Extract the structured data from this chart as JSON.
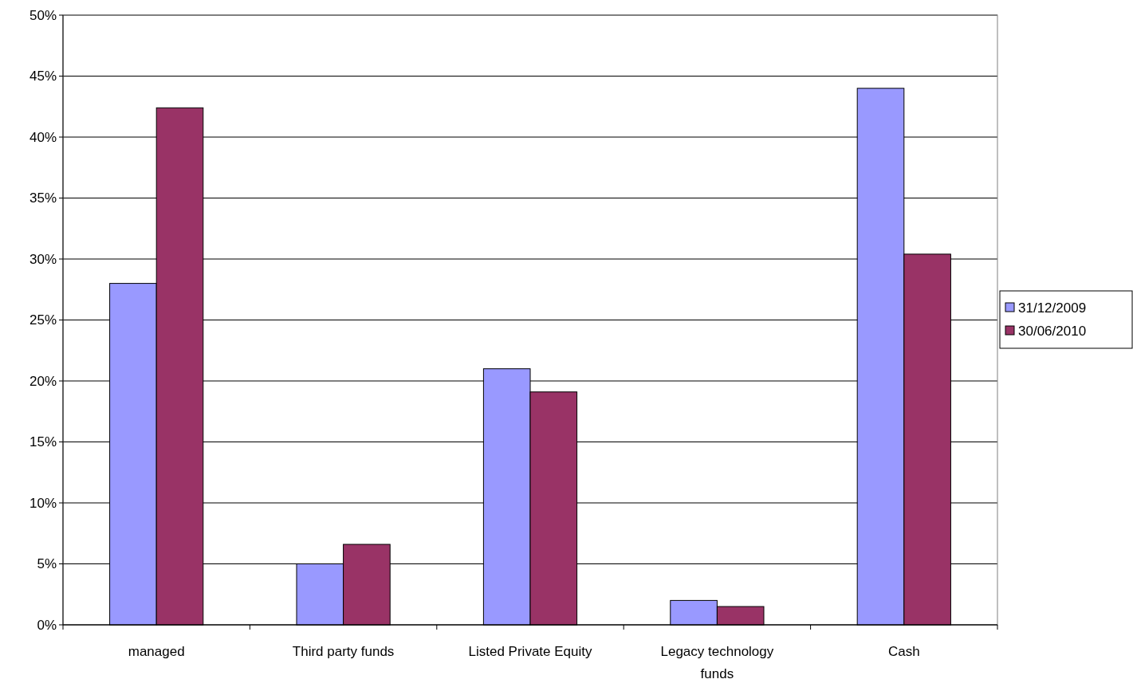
{
  "chart_data": {
    "type": "bar",
    "categories": [
      "managed",
      "Third party funds",
      "Listed Private Equity",
      "Legacy technology funds",
      "Cash"
    ],
    "series": [
      {
        "name": "31/12/2009",
        "color": "#9999ff",
        "values": [
          28.0,
          5.0,
          21.0,
          2.0,
          44.0
        ]
      },
      {
        "name": "30/06/2010",
        "color": "#993366",
        "values": [
          42.4,
          6.6,
          19.1,
          1.5,
          30.4
        ]
      }
    ],
    "ylim": [
      0,
      50
    ],
    "yticks": [
      {
        "value": 0,
        "label": "0%"
      },
      {
        "value": 5,
        "label": "5%"
      },
      {
        "value": 10,
        "label": "10%"
      },
      {
        "value": 15,
        "label": "15%"
      },
      {
        "value": 20,
        "label": "20%"
      },
      {
        "value": 25,
        "label": "25%"
      },
      {
        "value": 30,
        "label": "30%"
      },
      {
        "value": 35,
        "label": "35%"
      },
      {
        "value": 40,
        "label": "40%"
      },
      {
        "value": 45,
        "label": "45%"
      },
      {
        "value": 50,
        "label": "50%"
      }
    ],
    "grid": "y",
    "legend": "right"
  }
}
